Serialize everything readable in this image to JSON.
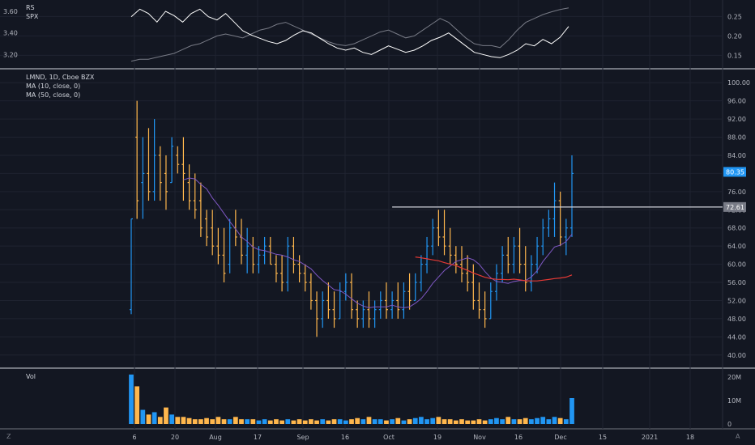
{
  "rs_pane": {
    "legend": [
      "RS",
      "SPX"
    ],
    "left_ticks": [
      "3.60",
      "3.40",
      "3.20"
    ],
    "right_ticks": [
      "0.25",
      "0.20",
      "0.15"
    ]
  },
  "price_pane": {
    "legend": [
      "LMND, 1D, Cboe BZX",
      "MA (10, close, 0)",
      "MA (50, close, 0)"
    ],
    "y_ticks": [
      "100.00",
      "96.00",
      "92.00",
      "88.00",
      "84.00",
      "80.00",
      "76.00",
      "72.00",
      "68.00",
      "64.00",
      "60.00",
      "56.00",
      "52.00",
      "48.00",
      "44.00",
      "40.00"
    ],
    "last_price_label": "80.35",
    "level_label": "72.61"
  },
  "volume_pane": {
    "legend": "Vol",
    "y_ticks": [
      "20M",
      "10M",
      "0"
    ]
  },
  "x_axis": {
    "labels": [
      "6",
      "20",
      "Aug",
      "17",
      "Sep",
      "16",
      "Oct",
      "19",
      "Nov",
      "16",
      "Dec",
      "15",
      "2021",
      "18"
    ]
  },
  "corner_buttons": {
    "left": "Z",
    "right": "A"
  },
  "colors": {
    "background": "#131722",
    "up": "#2196f3",
    "down": "#ffb74d",
    "ma10": "#7e57c2",
    "ma50": "#e53935",
    "grid": "#1f2330",
    "level": "#d1d4dc",
    "rs_line": "#ffffff",
    "spx_line": "#787b86",
    "last_price_bg": "#2196f3"
  },
  "chart_data": [
    {
      "type": "line",
      "title": "",
      "series": [
        {
          "name": "RS",
          "values": [
            3.55,
            3.62,
            3.58,
            3.5,
            3.6,
            3.56,
            3.5,
            3.58,
            3.62,
            3.55,
            3.52,
            3.58,
            3.5,
            3.42,
            3.38,
            3.35,
            3.32,
            3.3,
            3.33,
            3.38,
            3.42,
            3.4,
            3.35,
            3.3,
            3.26,
            3.24,
            3.26,
            3.22,
            3.2,
            3.24,
            3.28,
            3.25,
            3.22,
            3.24,
            3.28,
            3.33,
            3.36,
            3.4,
            3.34,
            3.28,
            3.22,
            3.2,
            3.18,
            3.17,
            3.2,
            3.24,
            3.3,
            3.28,
            3.34,
            3.3,
            3.36,
            3.46
          ]
        },
        {
          "name": "SPX",
          "values": [
            0.135,
            0.14,
            0.14,
            0.145,
            0.15,
            0.155,
            0.165,
            0.175,
            0.18,
            0.19,
            0.2,
            0.205,
            0.2,
            0.195,
            0.205,
            0.215,
            0.22,
            0.23,
            0.235,
            0.225,
            0.215,
            0.205,
            0.195,
            0.185,
            0.178,
            0.175,
            0.18,
            0.19,
            0.2,
            0.21,
            0.215,
            0.205,
            0.195,
            0.2,
            0.215,
            0.23,
            0.245,
            0.235,
            0.215,
            0.195,
            0.18,
            0.175,
            0.175,
            0.17,
            0.19,
            0.215,
            0.235,
            0.245,
            0.255,
            0.262,
            0.268,
            0.272
          ]
        }
      ],
      "ylim_left": [
        3.12,
        3.66
      ],
      "ylim_right": [
        0.13,
        0.28
      ]
    },
    {
      "type": "ohlc",
      "title": "LMND, 1D, Cboe BZX",
      "x_labels": [
        "6",
        "20",
        "Aug",
        "17",
        "Sep",
        "16",
        "Oct",
        "19",
        "Nov",
        "16",
        "Dec",
        "15",
        "2021",
        "18"
      ],
      "ohlc": [
        [
          50,
          70,
          49,
          70
        ],
        [
          88,
          96,
          70,
          74
        ],
        [
          78,
          88,
          70,
          80
        ],
        [
          80,
          90,
          74,
          76
        ],
        [
          76,
          92,
          74,
          84
        ],
        [
          84,
          86,
          74,
          78
        ],
        [
          80,
          84,
          72,
          76
        ],
        [
          78,
          88,
          78,
          86
        ],
        [
          84,
          86,
          80,
          82
        ],
        [
          82,
          88,
          74,
          80
        ],
        [
          78,
          82,
          72,
          74
        ],
        [
          74,
          80,
          70,
          72
        ],
        [
          74,
          78,
          66,
          68
        ],
        [
          70,
          72,
          64,
          66
        ],
        [
          68,
          72,
          62,
          64
        ],
        [
          64,
          68,
          60,
          62
        ],
        [
          62,
          68,
          56,
          58
        ],
        [
          60,
          70,
          58,
          68
        ],
        [
          68,
          72,
          64,
          66
        ],
        [
          66,
          70,
          60,
          62
        ],
        [
          62,
          68,
          58,
          64
        ],
        [
          64,
          66,
          58,
          60
        ],
        [
          60,
          64,
          58,
          62
        ],
        [
          62,
          66,
          60,
          64
        ],
        [
          64,
          66,
          60,
          60
        ],
        [
          60,
          62,
          56,
          58
        ],
        [
          58,
          62,
          54,
          56
        ],
        [
          56,
          66,
          54,
          64
        ],
        [
          64,
          66,
          58,
          60
        ],
        [
          60,
          62,
          56,
          58
        ],
        [
          58,
          60,
          54,
          56
        ],
        [
          56,
          58,
          50,
          52
        ],
        [
          52,
          54,
          44,
          48
        ],
        [
          48,
          54,
          46,
          52
        ],
        [
          52,
          56,
          48,
          50
        ],
        [
          50,
          54,
          46,
          48
        ],
        [
          48,
          56,
          48,
          54
        ],
        [
          54,
          58,
          52,
          56
        ],
        [
          56,
          58,
          48,
          50
        ],
        [
          50,
          52,
          46,
          48
        ],
        [
          48,
          52,
          46,
          50
        ],
        [
          50,
          54,
          46,
          48
        ],
        [
          48,
          52,
          46,
          50
        ],
        [
          50,
          54,
          48,
          52
        ],
        [
          52,
          56,
          48,
          50
        ],
        [
          50,
          54,
          48,
          52
        ],
        [
          52,
          56,
          48,
          50
        ],
        [
          50,
          56,
          48,
          54
        ],
        [
          54,
          58,
          50,
          52
        ],
        [
          52,
          58,
          52,
          56
        ],
        [
          56,
          62,
          54,
          60
        ],
        [
          60,
          66,
          58,
          64
        ],
        [
          64,
          70,
          62,
          68
        ],
        [
          68,
          72,
          64,
          66
        ],
        [
          66,
          72,
          62,
          64
        ],
        [
          64,
          68,
          60,
          62
        ],
        [
          62,
          64,
          58,
          60
        ],
        [
          60,
          64,
          56,
          58
        ],
        [
          58,
          62,
          54,
          56
        ],
        [
          56,
          60,
          50,
          52
        ],
        [
          52,
          56,
          48,
          50
        ],
        [
          50,
          54,
          46,
          48
        ],
        [
          48,
          56,
          48,
          54
        ],
        [
          54,
          60,
          52,
          58
        ],
        [
          58,
          64,
          56,
          62
        ],
        [
          62,
          66,
          58,
          60
        ],
        [
          60,
          66,
          58,
          64
        ],
        [
          64,
          68,
          58,
          60
        ],
        [
          60,
          64,
          54,
          56
        ],
        [
          56,
          62,
          54,
          60
        ],
        [
          60,
          66,
          58,
          64
        ],
        [
          64,
          70,
          62,
          68
        ],
        [
          68,
          72,
          66,
          70
        ],
        [
          70,
          78,
          66,
          74
        ],
        [
          74,
          76,
          64,
          66
        ],
        [
          66,
          70,
          62,
          68
        ],
        [
          68,
          84,
          66,
          80
        ]
      ],
      "ma10_note": "MA (10, close, 0)",
      "ma50_note": "MA (50, close, 0)",
      "horizontal_level": 72.61,
      "last_price": 80.35,
      "ylim": [
        38,
        102
      ]
    },
    {
      "type": "bar",
      "title": "Vol",
      "values_millions": [
        21,
        16,
        6,
        4,
        5,
        3,
        7,
        4,
        3,
        3,
        2.5,
        2,
        2,
        2.5,
        2,
        3,
        2,
        2,
        3,
        2,
        2,
        2,
        1.5,
        2,
        1.5,
        2,
        1.5,
        2,
        1.5,
        2,
        1.5,
        2,
        1.5,
        2,
        1.5,
        2,
        2,
        1.5,
        2,
        2.5,
        2,
        3,
        2,
        2,
        1.5,
        2,
        2.5,
        1.5,
        2,
        2.5,
        3,
        2,
        2.5,
        3,
        2,
        2,
        1.5,
        2,
        1.5,
        1.5,
        2,
        1.5,
        2,
        2.5,
        2,
        3,
        2,
        2,
        2.5,
        2,
        2.5,
        3,
        2,
        3,
        2.5,
        2,
        11
      ],
      "ylim": [
        0,
        22
      ]
    }
  ]
}
